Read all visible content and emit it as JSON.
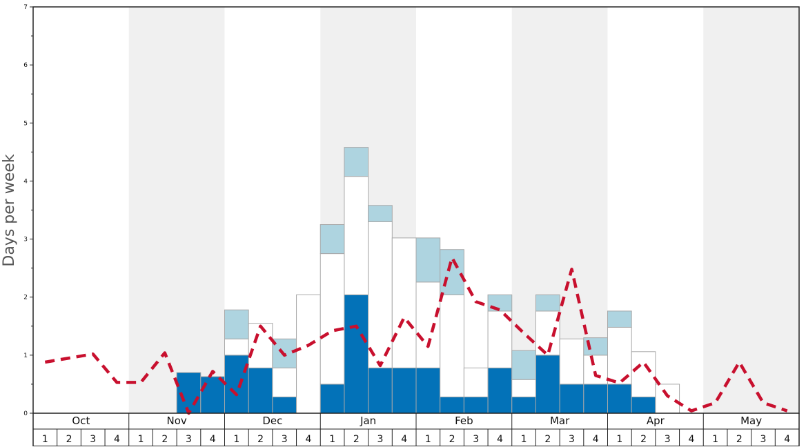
{
  "chart_data": {
    "type": "bar",
    "ylabel": "Days per week",
    "xlabel": "",
    "ylim": [
      0,
      7
    ],
    "yticks": [
      0,
      1,
      2,
      3,
      4,
      5,
      6,
      7
    ],
    "months": [
      "Oct",
      "Nov",
      "Dec",
      "Jan",
      "Feb",
      "Mar",
      "Apr",
      "May"
    ],
    "weeks": [
      "1",
      "2",
      "3",
      "4"
    ],
    "colors": {
      "dark_segment": "#0372b8",
      "white_segment": "#ffffff",
      "light_segment": "#aed4e0",
      "dashed_line": "#c8102e",
      "shade_band": "#f0f0f0",
      "bar_edge": "#a8a8a8"
    },
    "series": [
      {
        "key": "dark",
        "values": [
          0,
          0,
          0,
          0,
          0,
          0,
          0.7,
          0.63,
          1.0,
          0.78,
          0.28,
          0,
          0.5,
          2.04,
          0.78,
          0.78,
          0.78,
          0.28,
          0.28,
          0.78,
          0.28,
          1.0,
          0.5,
          0.5,
          0.5,
          0.28,
          0,
          0,
          0,
          0,
          0,
          0
        ]
      },
      {
        "key": "white",
        "values": [
          0,
          0,
          0,
          0,
          0,
          0,
          0,
          0,
          0.28,
          0.77,
          0.5,
          2.04,
          2.25,
          2.04,
          2.52,
          2.24,
          1.48,
          1.76,
          0.5,
          0.98,
          0.3,
          0.76,
          0.78,
          0.5,
          0.98,
          0.78,
          0.5,
          0,
          0,
          0,
          0,
          0
        ]
      },
      {
        "key": "light",
        "values": [
          0,
          0,
          0,
          0,
          0,
          0,
          0,
          0,
          0.5,
          0,
          0.5,
          0,
          0.5,
          0.5,
          0.28,
          0,
          0.76,
          0.78,
          0,
          0.28,
          0.5,
          0.28,
          0,
          0.3,
          0.28,
          0,
          0,
          0,
          0,
          0,
          0,
          0
        ]
      },
      {
        "key": "line",
        "values": [
          0.88,
          0.95,
          1.02,
          0.53,
          0.53,
          1.04,
          0.0,
          0.72,
          0.32,
          1.5,
          1.0,
          1.17,
          1.42,
          1.5,
          0.82,
          1.65,
          1.15,
          2.68,
          1.92,
          1.78,
          1.38,
          1.0,
          2.48,
          0.65,
          0.52,
          0.88,
          0.3,
          0.04,
          0.18,
          0.88,
          0.18,
          0.04
        ]
      }
    ]
  }
}
